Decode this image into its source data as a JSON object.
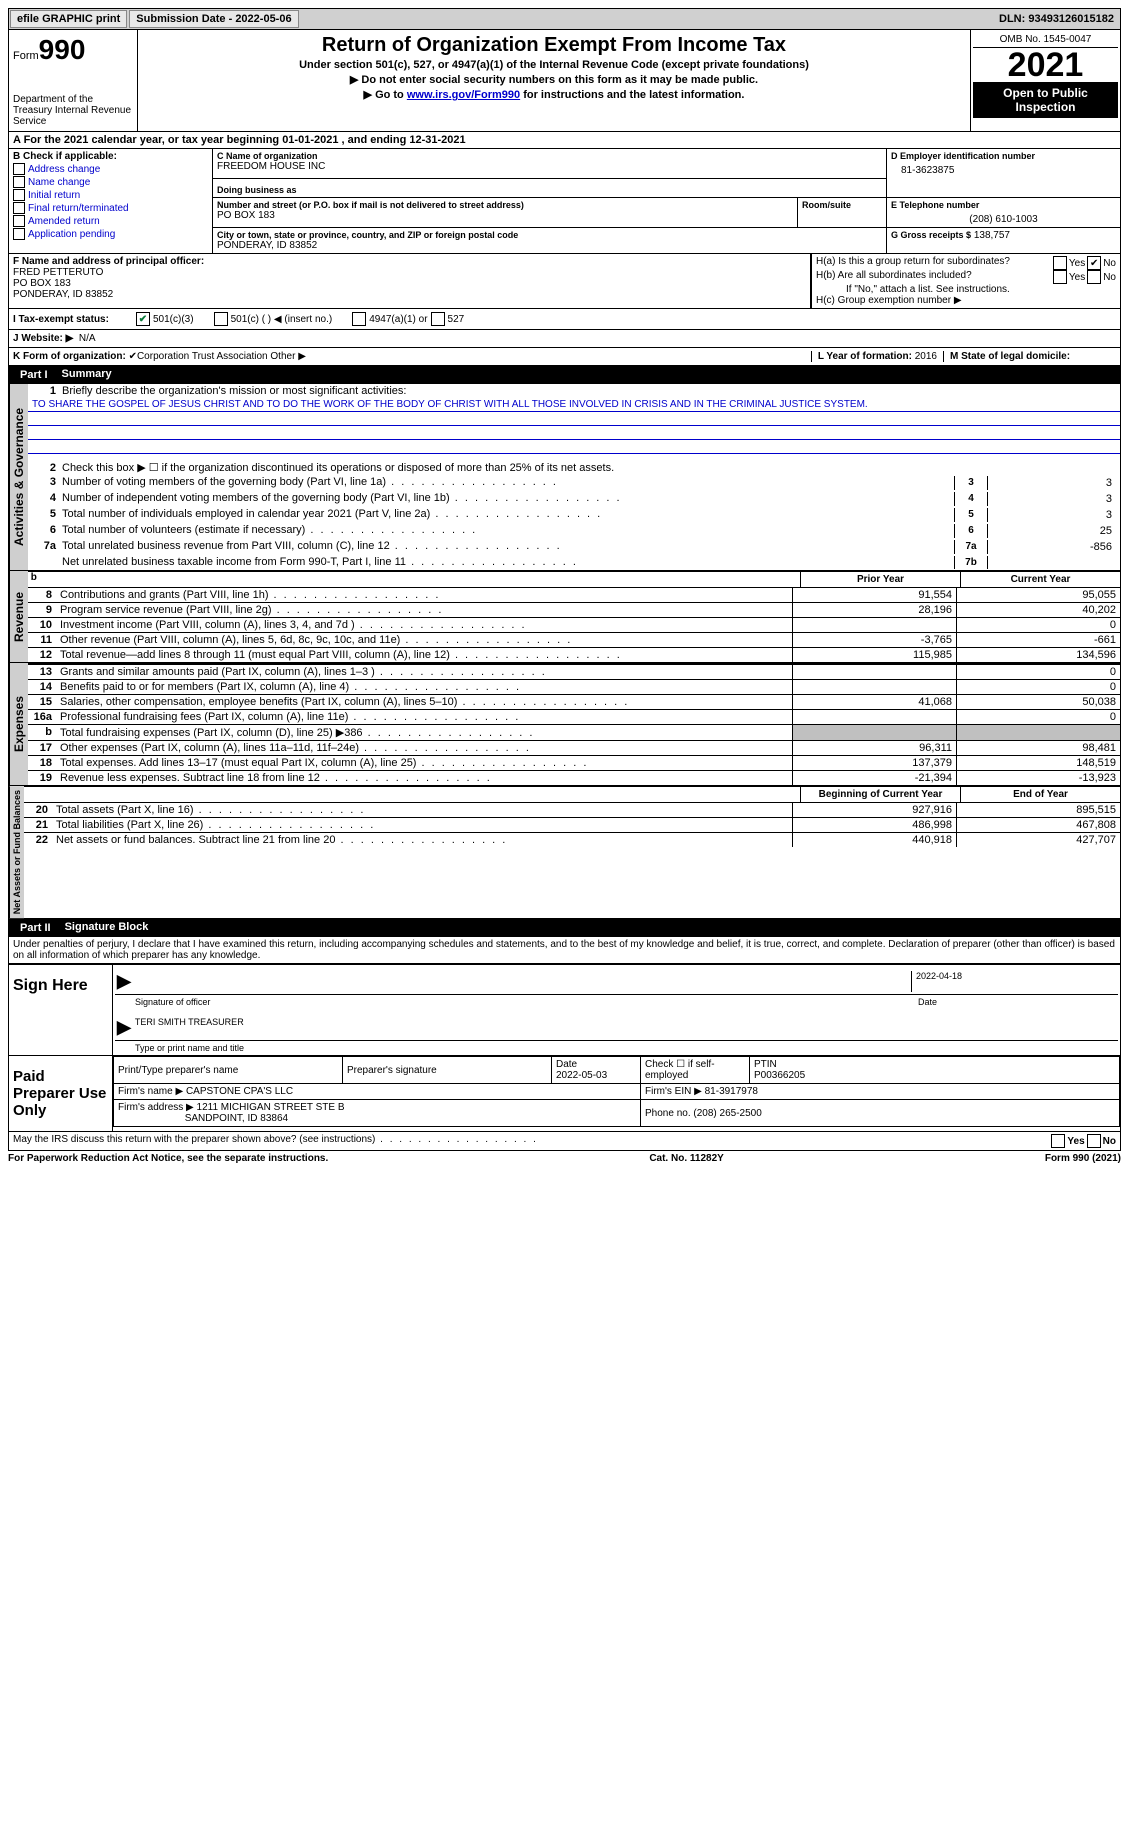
{
  "topbar": {
    "efile": "efile GRAPHIC print",
    "submission_label": "Submission Date - 2022-05-06",
    "dln_label": "DLN: 93493126015182"
  },
  "header": {
    "form_word": "Form",
    "form_num": "990",
    "dept": "Department of the Treasury\nInternal Revenue Service",
    "title": "Return of Organization Exempt From Income Tax",
    "sub1": "Under section 501(c), 527, or 4947(a)(1) of the Internal Revenue Code (except private foundations)",
    "sub2": "▶ Do not enter social security numbers on this form as it may be made public.",
    "sub3_pre": "▶ Go to ",
    "sub3_link": "www.irs.gov/Form990",
    "sub3_post": " for instructions and the latest information.",
    "omb": "OMB No. 1545-0047",
    "year": "2021",
    "open": "Open to Public Inspection"
  },
  "rowA": "A For the 2021 calendar year, or tax year beginning 01-01-2021    , and ending 12-31-2021",
  "boxB": {
    "label": "B Check if applicable:",
    "items": [
      "Address change",
      "Name change",
      "Initial return",
      "Final return/terminated",
      "Amended return",
      "Application pending"
    ]
  },
  "boxC": {
    "label": "C Name of organization",
    "name": "FREEDOM HOUSE INC",
    "dba_label": "Doing business as",
    "addr_label": "Number and street (or P.O. box if mail is not delivered to street address)",
    "room_label": "Room/suite",
    "addr": "PO BOX 183",
    "city_label": "City or town, state or province, country, and ZIP or foreign postal code",
    "city": "PONDERAY, ID  83852"
  },
  "boxD": {
    "label": "D Employer identification number",
    "value": "81-3623875"
  },
  "boxE": {
    "label": "E Telephone number",
    "value": "(208) 610-1003"
  },
  "boxG": {
    "label": "G Gross receipts $",
    "value": "138,757"
  },
  "boxF": {
    "label": "F Name and address of principal officer:",
    "name": "FRED PETTERUTO",
    "addr1": "PO BOX 183",
    "addr2": "PONDERAY, ID  83852"
  },
  "boxH": {
    "ha": "H(a)  Is this a group return for subordinates?",
    "hb": "H(b)  Are all subordinates included?",
    "hb_note": "If \"No,\" attach a list. See instructions.",
    "hc": "H(c)  Group exemption number ▶"
  },
  "boxI": {
    "label": "I  Tax-exempt status:",
    "o1": "501(c)(3)",
    "o2": "501(c) (   ) ◀ (insert no.)",
    "o3": "4947(a)(1) or",
    "o4": "527"
  },
  "boxJ": {
    "label": "J  Website: ▶",
    "value": "N/A"
  },
  "boxK": {
    "label": "K Form of organization:",
    "o1": "Corporation",
    "o2": "Trust",
    "o3": "Association",
    "o4": "Other ▶"
  },
  "boxL": {
    "label": "L Year of formation:",
    "value": "2016"
  },
  "boxM": {
    "label": "M State of legal domicile:",
    "value": ""
  },
  "part1": {
    "label": "Part I",
    "title": "Summary"
  },
  "summary": {
    "l1_label": "Briefly describe the organization's mission or most significant activities:",
    "mission": "TO SHARE THE GOSPEL OF JESUS CHRIST AND TO DO THE WORK OF THE BODY OF CHRIST WITH ALL THOSE INVOLVED IN CRISIS AND IN THE CRIMINAL JUSTICE SYSTEM.",
    "l2": "Check this box ▶ ☐ if the organization discontinued its operations or disposed of more than 25% of its net assets.",
    "rows_nums": [
      {
        "n": "3",
        "t": "Number of voting members of the governing body (Part VI, line 1a)",
        "box": "3",
        "v": "3"
      },
      {
        "n": "4",
        "t": "Number of independent voting members of the governing body (Part VI, line 1b)",
        "box": "4",
        "v": "3"
      },
      {
        "n": "5",
        "t": "Total number of individuals employed in calendar year 2021 (Part V, line 2a)",
        "box": "5",
        "v": "3"
      },
      {
        "n": "6",
        "t": "Total number of volunteers (estimate if necessary)",
        "box": "6",
        "v": "25"
      },
      {
        "n": "7a",
        "t": "Total unrelated business revenue from Part VIII, column (C), line 12",
        "box": "7a",
        "v": "-856"
      },
      {
        "n": "",
        "t": "Net unrelated business taxable income from Form 990-T, Part I, line 11",
        "box": "7b",
        "v": ""
      }
    ]
  },
  "tab_activities": "Activities & Governance",
  "tab_revenue": "Revenue",
  "tab_expenses": "Expenses",
  "tab_netassets": "Net Assets or Fund Balances",
  "col_prior": "Prior Year",
  "col_current": "Current Year",
  "revenue_rows": [
    {
      "n": "8",
      "t": "Contributions and grants (Part VIII, line 1h)",
      "p": "91,554",
      "c": "95,055"
    },
    {
      "n": "9",
      "t": "Program service revenue (Part VIII, line 2g)",
      "p": "28,196",
      "c": "40,202"
    },
    {
      "n": "10",
      "t": "Investment income (Part VIII, column (A), lines 3, 4, and 7d )",
      "p": "",
      "c": "0"
    },
    {
      "n": "11",
      "t": "Other revenue (Part VIII, column (A), lines 5, 6d, 8c, 9c, 10c, and 11e)",
      "p": "-3,765",
      "c": "-661"
    },
    {
      "n": "12",
      "t": "Total revenue—add lines 8 through 11 (must equal Part VIII, column (A), line 12)",
      "p": "115,985",
      "c": "134,596"
    }
  ],
  "expense_rows": [
    {
      "n": "13",
      "t": "Grants and similar amounts paid (Part IX, column (A), lines 1–3 )",
      "p": "",
      "c": "0"
    },
    {
      "n": "14",
      "t": "Benefits paid to or for members (Part IX, column (A), line 4)",
      "p": "",
      "c": "0"
    },
    {
      "n": "15",
      "t": "Salaries, other compensation, employee benefits (Part IX, column (A), lines 5–10)",
      "p": "41,068",
      "c": "50,038"
    },
    {
      "n": "16a",
      "t": "Professional fundraising fees (Part IX, column (A), line 11e)",
      "p": "",
      "c": "0"
    },
    {
      "n": "b",
      "t": "Total fundraising expenses (Part IX, column (D), line 25) ▶386",
      "p": "shade",
      "c": "shade"
    },
    {
      "n": "17",
      "t": "Other expenses (Part IX, column (A), lines 11a–11d, 11f–24e)",
      "p": "96,311",
      "c": "98,481"
    },
    {
      "n": "18",
      "t": "Total expenses. Add lines 13–17 (must equal Part IX, column (A), line 25)",
      "p": "137,379",
      "c": "148,519"
    },
    {
      "n": "19",
      "t": "Revenue less expenses. Subtract line 18 from line 12",
      "p": "-21,394",
      "c": "-13,923"
    }
  ],
  "col_begin": "Beginning of Current Year",
  "col_end": "End of Year",
  "netassets_rows": [
    {
      "n": "20",
      "t": "Total assets (Part X, line 16)",
      "p": "927,916",
      "c": "895,515"
    },
    {
      "n": "21",
      "t": "Total liabilities (Part X, line 26)",
      "p": "486,998",
      "c": "467,808"
    },
    {
      "n": "22",
      "t": "Net assets or fund balances. Subtract line 21 from line 20",
      "p": "440,918",
      "c": "427,707"
    }
  ],
  "part2": {
    "label": "Part II",
    "title": "Signature Block"
  },
  "penalties": "Under penalties of perjury, I declare that I have examined this return, including accompanying schedules and statements, and to the best of my knowledge and belief, it is true, correct, and complete. Declaration of preparer (other than officer) is based on all information of which preparer has any knowledge.",
  "sign": {
    "label": "Sign Here",
    "sig_of_officer": "Signature of officer",
    "date": "2022-04-18",
    "name": "TERI SMITH  TREASURER",
    "name_label": "Type or print name and title"
  },
  "paid": {
    "label": "Paid Preparer Use Only",
    "h_name": "Print/Type preparer's name",
    "h_sig": "Preparer's signature",
    "h_date": "Date",
    "date": "2022-05-03",
    "h_check": "Check ☐ if self-employed",
    "h_ptin": "PTIN",
    "ptin": "P00366205",
    "firm_label": "Firm's name   ▶",
    "firm": "CAPSTONE CPA'S LLC",
    "ein_label": "Firm's EIN ▶",
    "ein": "81-3917978",
    "addr_label": "Firm's address ▶",
    "addr1": "1211 MICHIGAN STREET STE B",
    "addr2": "SANDPOINT, ID  83864",
    "phone_label": "Phone no.",
    "phone": "(208) 265-2500"
  },
  "discuss": "May the IRS discuss this return with the preparer shown above? (see instructions)",
  "footer": {
    "left": "For Paperwork Reduction Act Notice, see the separate instructions.",
    "mid": "Cat. No. 11282Y",
    "right": "Form 990 (2021)"
  }
}
